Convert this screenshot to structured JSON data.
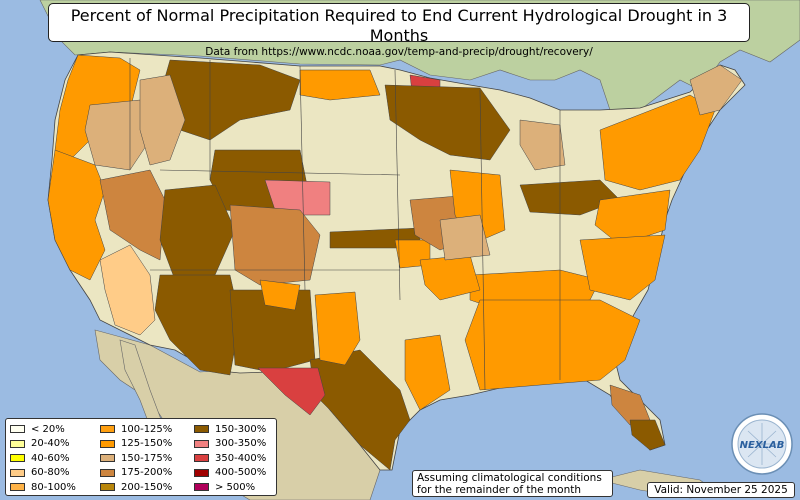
{
  "title": "Percent of Normal Precipitation Required to End Current Hydrological Drought in 3 Months",
  "subtitle": "Data from https://www.ncdc.noaa.gov/temp-and-precip/drought/recovery/",
  "legend": [
    {
      "label": "< 20%",
      "color": "#fffff0"
    },
    {
      "label": "20-40%",
      "color": "#ffff99"
    },
    {
      "label": "40-60%",
      "color": "#ffff00"
    },
    {
      "label": "60-80%",
      "color": "#ffcc88"
    },
    {
      "label": "80-100%",
      "color": "#ffb347"
    },
    {
      "label": "100-125%",
      "color": "#ff9f10"
    },
    {
      "label": "125-150%",
      "color": "#ff9a00"
    },
    {
      "label": "150-175%",
      "color": "#dcb07a"
    },
    {
      "label": "175-200%",
      "color": "#cd853f"
    },
    {
      "label": "200-150%",
      "color": "#b8860b"
    },
    {
      "label": "150-300%",
      "color": "#8b5a00"
    },
    {
      "label": "300-350%",
      "color": "#f08080"
    },
    {
      "label": "350-400%",
      "color": "#d94040"
    },
    {
      "label": "400-500%",
      "color": "#a00000"
    },
    {
      "label": "> 500%",
      "color": "#b0005a"
    }
  ],
  "note_line1": "Assuming climatological conditions",
  "note_line2": "for the remainder of the month",
  "valid": "Valid: November 25 2025",
  "logo_text": "NEXLAB",
  "colors": {
    "ocean": "#9bbbe2",
    "land": "#c8d6a3",
    "canada": "#bcd0a0",
    "mexico": "#d8cfa8",
    "no_drought": "#ebe6c2",
    "border": "#333333"
  }
}
